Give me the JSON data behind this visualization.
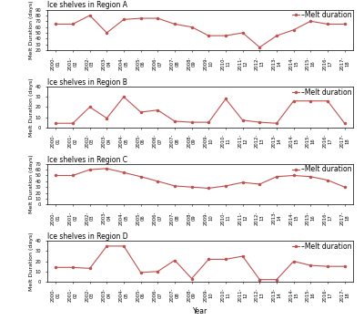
{
  "x_labels": [
    "2000-\n01",
    "2001-\n02",
    "2002-\n03",
    "2003-\n04",
    "2004-\n05",
    "2005-\n06",
    "2006-\n07",
    "2007-\n08",
    "2008-\n09",
    "2009-\n10",
    "2010-\n11",
    "2011-\n12",
    "2012-\n13",
    "2013-\n14",
    "2014-\n15",
    "2015-\n16",
    "2016-\n17",
    "2017-\n18"
  ],
  "regionA": [
    65,
    65,
    80,
    50,
    73,
    75,
    75,
    65,
    60,
    45,
    45,
    50,
    25,
    45,
    55,
    70,
    65,
    65
  ],
  "regionA_ylim": [
    20,
    90
  ],
  "regionA_yticks": [
    20,
    30,
    40,
    50,
    60,
    70,
    80,
    90
  ],
  "regionB": [
    4,
    4,
    20,
    9,
    30,
    15,
    17,
    6,
    5,
    5,
    28,
    7,
    5,
    4,
    26,
    26,
    26,
    4
  ],
  "regionB_ylim": [
    0,
    40
  ],
  "regionB_yticks": [
    0,
    10,
    20,
    30,
    40
  ],
  "regionC": [
    50,
    50,
    60,
    62,
    55,
    48,
    40,
    32,
    30,
    28,
    32,
    38,
    35,
    48,
    50,
    48,
    42,
    30
  ],
  "regionC_ylim": [
    0,
    70
  ],
  "regionC_yticks": [
    0,
    10,
    20,
    30,
    40,
    50,
    60,
    70
  ],
  "regionD": [
    14,
    14,
    13,
    35,
    35,
    9,
    10,
    21,
    3,
    22,
    22,
    25,
    2,
    2,
    20,
    16,
    15,
    15
  ],
  "regionD_ylim": [
    0,
    40
  ],
  "regionD_yticks": [
    0,
    10,
    20,
    30,
    40
  ],
  "line_color": "#c0504d",
  "marker": "o",
  "markersize": 1.5,
  "linewidth": 0.8,
  "ylabel": "Melt Duration (days)",
  "xlabel": "Year",
  "title_A": "Ice shelves in Region A",
  "title_B": "Ice shelves in Region B",
  "title_C": "Ice shelves in Region C",
  "title_D": "Ice shelves in Region D",
  "legend_label": "–Melt duration",
  "title_fontsize": 5.5,
  "tick_fontsize": 3.8,
  "ylabel_fontsize": 4.5,
  "xlabel_fontsize": 5.5
}
